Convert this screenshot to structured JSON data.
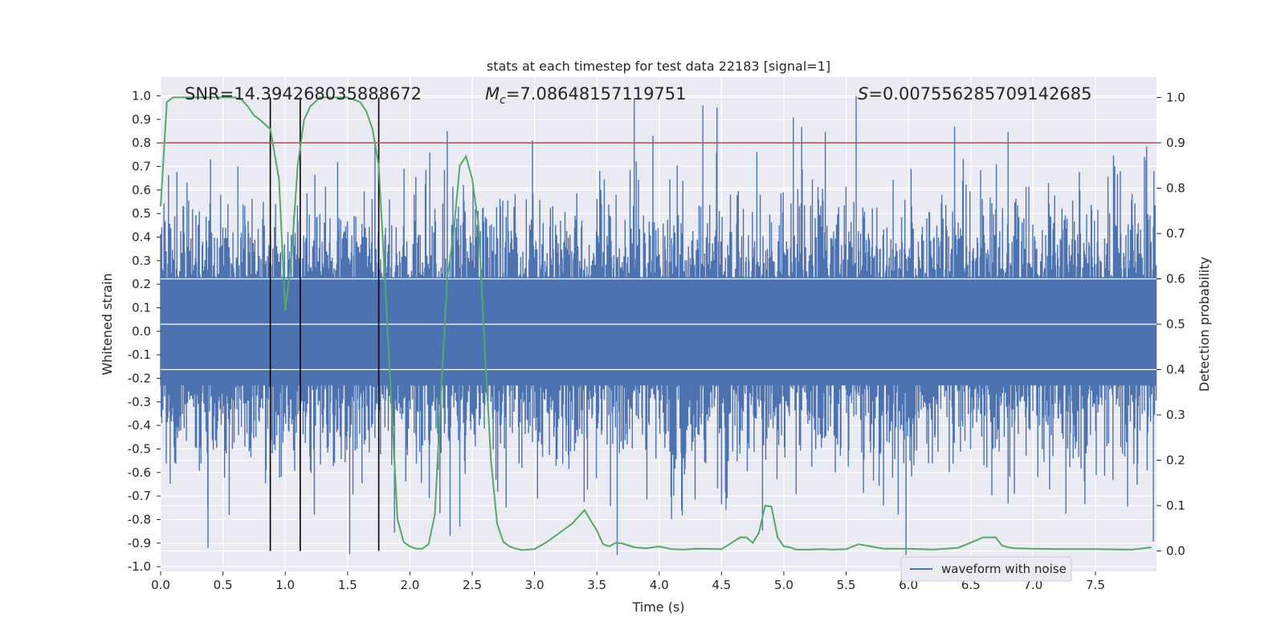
{
  "chart_data": {
    "type": "line",
    "title": "stats at each timestep for test data 22183 [signal=1]",
    "xlabel": "Time (s)",
    "ylabel": "Whitened strain",
    "y2label": "Detection probability",
    "xlim": [
      0.0,
      7.99
    ],
    "ylim": [
      -1.02,
      1.08
    ],
    "y2lim": [
      -0.045,
      1.045
    ],
    "xticks": [
      "0.0",
      "0.5",
      "1.0",
      "1.5",
      "2.0",
      "2.5",
      "3.0",
      "3.5",
      "4.0",
      "4.5",
      "5.0",
      "5.5",
      "6.0",
      "6.5",
      "7.0",
      "7.5"
    ],
    "yticks": [
      "-1.0",
      "-0.9",
      "-0.8",
      "-0.7",
      "-0.6",
      "-0.5",
      "-0.4",
      "-0.3",
      "-0.2",
      "-0.1",
      "0.0",
      "0.1",
      "0.2",
      "0.3",
      "0.4",
      "0.5",
      "0.6",
      "0.7",
      "0.8",
      "0.9",
      "1.0"
    ],
    "y2ticks": [
      "0.0",
      "0.1",
      "0.2",
      "0.3",
      "0.4",
      "0.5",
      "0.6",
      "0.7",
      "0.8",
      "0.9",
      "1.0"
    ],
    "grid": true,
    "legend": {
      "placement": "lower-right",
      "entries": [
        "waveform with noise"
      ]
    },
    "annotations": {
      "snr": "SNR=14.394268035888672",
      "mc_symbol": "M",
      "mc_subscript": "c",
      "mc_value": "=7.08648157119751",
      "s_symbol": "S",
      "s_value": "=0.007556285709142685"
    },
    "threshold": {
      "value": 0.9,
      "axis": "y2",
      "color": "#c44e52"
    },
    "vertical_lines": [
      0.88,
      1.12,
      1.75
    ],
    "colors": {
      "waveform": "#4c72b0",
      "probability": "#55a868",
      "threshold": "#c44e52",
      "vline": "#000000",
      "plot_bg": "#eaeaf2",
      "grid": "#ffffff"
    },
    "series": [
      {
        "name": "waveform with noise",
        "axis": "y",
        "envelope_typical": [
          -0.35,
          0.35
        ],
        "peaks": [
          {
            "x": 0.38,
            "y": -0.92
          },
          {
            "x": 0.4,
            "y": 0.73
          },
          {
            "x": 0.55,
            "y": -0.78
          },
          {
            "x": 0.62,
            "y": 0.7
          },
          {
            "x": 1.42,
            "y": 0.72
          },
          {
            "x": 1.72,
            "y": 0.8
          },
          {
            "x": 2.3,
            "y": 0.85
          },
          {
            "x": 2.4,
            "y": -0.83
          },
          {
            "x": 3.8,
            "y": 0.99
          },
          {
            "x": 3.95,
            "y": 0.83
          },
          {
            "x": 4.18,
            "y": -0.76
          },
          {
            "x": 4.35,
            "y": 0.96
          },
          {
            "x": 5.58,
            "y": 1.0
          },
          {
            "x": 5.8,
            "y": -0.74
          },
          {
            "x": 6.37,
            "y": 0.87
          },
          {
            "x": 6.85,
            "y": -0.69
          },
          {
            "x": 7.7,
            "y": 0.68
          }
        ]
      },
      {
        "name": "",
        "axis": "y2",
        "x": [
          0.0,
          0.05,
          0.1,
          0.2,
          0.3,
          0.4,
          0.5,
          0.6,
          0.65,
          0.7,
          0.75,
          0.8,
          0.88,
          0.95,
          1.0,
          1.05,
          1.1,
          1.15,
          1.2,
          1.28,
          1.35,
          1.4,
          1.5,
          1.6,
          1.65,
          1.7,
          1.75,
          1.8,
          1.9,
          1.95,
          2.0,
          2.05,
          2.1,
          2.15,
          2.2,
          2.25,
          2.3,
          2.35,
          2.4,
          2.45,
          2.5,
          2.55,
          2.6,
          2.65,
          2.7,
          2.75,
          2.8,
          2.85,
          2.9,
          3.0,
          3.05,
          3.1,
          3.2,
          3.3,
          3.35,
          3.4,
          3.5,
          3.55,
          3.6,
          3.65,
          3.7,
          3.8,
          3.9,
          4.0,
          4.1,
          4.2,
          4.3,
          4.5,
          4.65,
          4.7,
          4.75,
          4.8,
          4.85,
          4.9,
          4.95,
          5.0,
          5.05,
          5.1,
          5.2,
          5.3,
          5.4,
          5.5,
          5.6,
          5.7,
          5.8,
          5.9,
          6.0,
          6.2,
          6.4,
          6.6,
          6.7,
          6.75,
          6.8,
          6.85,
          7.0,
          7.2,
          7.5,
          7.8,
          7.95
        ],
        "y": [
          0.76,
          0.99,
          1.0,
          1.0,
          1.0,
          1.0,
          1.0,
          1.0,
          0.995,
          0.98,
          0.96,
          0.95,
          0.93,
          0.82,
          0.53,
          0.65,
          0.85,
          0.95,
          0.98,
          1.0,
          1.0,
          1.0,
          1.0,
          0.99,
          0.97,
          0.93,
          0.85,
          0.6,
          0.07,
          0.02,
          0.01,
          0.005,
          0.005,
          0.015,
          0.08,
          0.35,
          0.6,
          0.7,
          0.85,
          0.87,
          0.82,
          0.72,
          0.45,
          0.2,
          0.06,
          0.02,
          0.01,
          0.005,
          0.002,
          0.004,
          0.012,
          0.02,
          0.04,
          0.06,
          0.075,
          0.09,
          0.045,
          0.015,
          0.01,
          0.018,
          0.017,
          0.008,
          0.006,
          0.01,
          0.004,
          0.003,
          0.005,
          0.004,
          0.03,
          0.03,
          0.018,
          0.04,
          0.1,
          0.098,
          0.03,
          0.01,
          0.008,
          0.003,
          0.003,
          0.004,
          0.003,
          0.004,
          0.015,
          0.01,
          0.005,
          0.005,
          0.005,
          0.003,
          0.007,
          0.03,
          0.03,
          0.012,
          0.008,
          0.006,
          0.005,
          0.004,
          0.004,
          0.003,
          0.008
        ]
      }
    ]
  }
}
